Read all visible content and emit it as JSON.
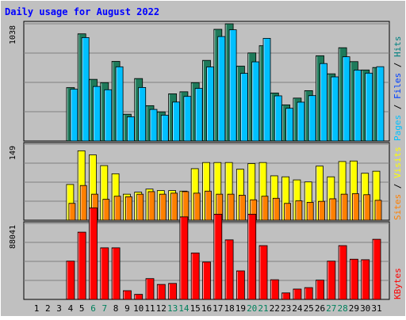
{
  "title": "Daily usage for August 2022",
  "colors": {
    "background": "#c0c0c0",
    "title": "#0000ff",
    "pages": "#00c0ff",
    "files": "#0040ff",
    "hits": "#008080",
    "hits_bar": "#1e7a5a",
    "sites": "#ff8000",
    "visits": "#ffff00",
    "kbytes": "#ff0000",
    "weekend": "#00805c"
  },
  "chart_data": {
    "type": "bar",
    "categories": [
      "1",
      "2",
      "3",
      "4",
      "5",
      "6",
      "7",
      "8",
      "9",
      "10",
      "11",
      "12",
      "13",
      "14",
      "15",
      "16",
      "17",
      "18",
      "19",
      "20",
      "21",
      "22",
      "23",
      "24",
      "25",
      "26",
      "27",
      "28",
      "29",
      "30",
      "31"
    ],
    "weekend_days": [
      "6",
      "7",
      "13",
      "14",
      "20",
      "21",
      "27",
      "28"
    ],
    "panels": [
      {
        "name": "hits-files-pages",
        "y_tick_label": "1038",
        "ymax": 1038,
        "right_label": [
          "Pages",
          "Files",
          "Hits"
        ],
        "series": [
          {
            "name": "Hits",
            "values": [
              0,
              0,
              0,
              473,
              949,
              546,
              517,
              705,
              237,
              553,
              313,
              258,
              418,
              436,
              517,
              714,
              989,
              1038,
              663,
              780,
              844,
              425,
              320,
              380,
              446,
              755,
              595,
              826,
              703,
              629,
              651
            ]
          },
          {
            "name": "Files",
            "values": [
              0,
              0,
              0,
              459,
              916,
              483,
              454,
              657,
              214,
              474,
              280,
              229,
              345,
              395,
              466,
              656,
              925,
              985,
              599,
              701,
              909,
              400,
              290,
              344,
              402,
              686,
              568,
              746,
              628,
              601,
              658
            ]
          },
          {
            "name": "Pages",
            "values": [
              0,
              0,
              0,
              0,
              0,
              0,
              0,
              0,
              0,
              0,
              0,
              0,
              0,
              0,
              0,
              0,
              0,
              0,
              0,
              0,
              0,
              0,
              0,
              0,
              0,
              0,
              0,
              0,
              0,
              0,
              0
            ]
          }
        ]
      },
      {
        "name": "visits-sites",
        "y_tick_label": "149",
        "ymax": 149,
        "right_label": [
          "Sites",
          "Visits"
        ],
        "series": [
          {
            "name": "Visits",
            "values": [
              0,
              0,
              0,
              70,
              136,
              128,
              107,
              91,
              51,
              55,
              61,
              58,
              58,
              57,
              101,
              113,
              113,
              113,
              100,
              111,
              113,
              87,
              85,
              79,
              75,
              106,
              85,
              115,
              116,
              92,
              96
            ]
          },
          {
            "name": "Sites",
            "values": [
              0,
              0,
              0,
              33,
              68,
              51,
              41,
              47,
              46,
              51,
              56,
              51,
              53,
              56,
              53,
              57,
              51,
              51,
              49,
              40,
              47,
              43,
              33,
              38,
              35,
              37,
              42,
              51,
              52,
              50,
              39
            ]
          }
        ]
      },
      {
        "name": "kbytes",
        "y_tick_label": "88041",
        "ymax": 88041,
        "right_label": [
          "KBytes"
        ],
        "series": [
          {
            "name": "KBytes",
            "values": [
              0,
              0,
              0,
              44360,
              77880,
              106016,
              59740,
              59740,
              10096,
              5864,
              24096,
              17344,
              18528,
              95568,
              53800,
              43280,
              98672,
              68960,
              33040,
              98672,
              62300,
              22800,
              7544,
              11984,
              13672,
              22360,
              44360,
              62300,
              46560,
              45960,
              69616
            ]
          }
        ]
      }
    ]
  }
}
